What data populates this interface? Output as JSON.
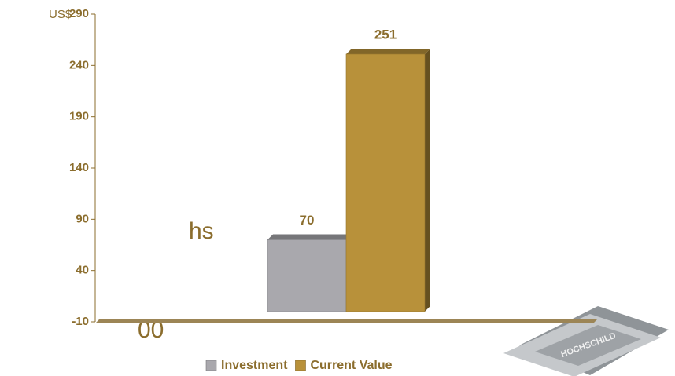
{
  "chart_data": {
    "type": "bar",
    "y_label": "US$",
    "categories": [
      null
    ],
    "series": [
      {
        "name": "Investment",
        "color": "#a9a8ad",
        "values": [
          70
        ]
      },
      {
        "name": "Current Value",
        "color": "#b8913a",
        "values": [
          251
        ]
      }
    ],
    "ylim": [
      -10,
      290
    ],
    "yticks": [
      -10,
      40,
      90,
      140,
      190,
      240,
      290
    ],
    "annotations": [
      "hs",
      "00"
    ],
    "logo_text": "HOCHSCHILD",
    "legend": "bottom"
  }
}
